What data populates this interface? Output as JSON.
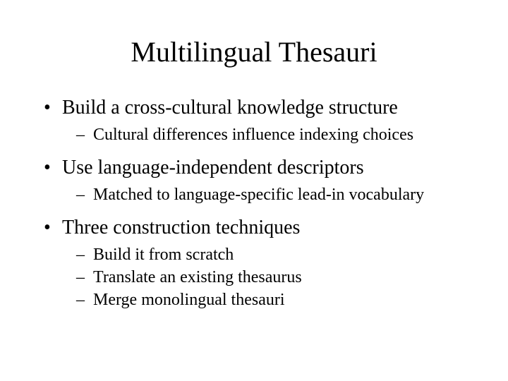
{
  "title": "Multilingual Thesauri",
  "bullets": {
    "b1": "Build a cross-cultural knowledge structure",
    "b1_1": "Cultural differences influence indexing choices",
    "b2": "Use language-independent descriptors",
    "b2_1": "Matched to language-specific lead-in vocabulary",
    "b3": "Three construction techniques",
    "b3_1": "Build it from scratch",
    "b3_2": "Translate an existing thesaurus",
    "b3_3": "Merge monolingual thesauri"
  },
  "colors": {
    "background": "#ffffff",
    "text": "#000000"
  },
  "typography": {
    "font_family": "Times New Roman",
    "title_size_pt": 40,
    "level1_size_pt": 28,
    "level2_size_pt": 24
  }
}
